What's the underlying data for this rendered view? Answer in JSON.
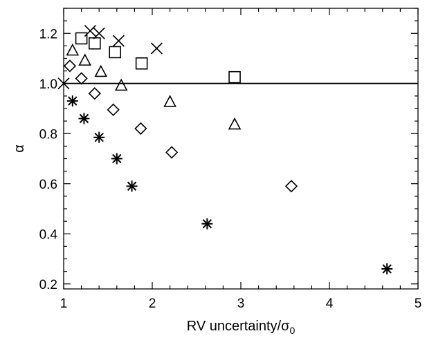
{
  "chart_data": {
    "type": "scatter",
    "xlim": [
      1,
      5
    ],
    "ylim": [
      0.18,
      1.3
    ],
    "xlabel_main": "RV uncertainty/σ",
    "xlabel_sub": "0",
    "ylabel": "α",
    "x_ticks": [
      "1",
      "2",
      "3",
      "4",
      "5"
    ],
    "x_tick_values": [
      1,
      2,
      3,
      4,
      5
    ],
    "y_ticks": [
      "0.2",
      "0.4",
      "0.6",
      "0.8",
      "1.0",
      "1.2"
    ],
    "y_tick_values": [
      0.2,
      0.4,
      0.6,
      0.8,
      1.0,
      1.2
    ],
    "reference_line": {
      "y": 1.0
    },
    "series": [
      {
        "marker": "x",
        "points": [
          [
            1.0,
            1.0
          ],
          [
            1.3,
            1.21
          ],
          [
            1.4,
            1.2
          ],
          [
            1.62,
            1.17
          ],
          [
            2.05,
            1.14
          ]
        ]
      },
      {
        "marker": "square",
        "points": [
          [
            1.2,
            1.18
          ],
          [
            1.35,
            1.16
          ],
          [
            1.58,
            1.125
          ],
          [
            1.88,
            1.08
          ],
          [
            2.93,
            1.025
          ]
        ]
      },
      {
        "marker": "triangle",
        "points": [
          [
            1.1,
            1.13
          ],
          [
            1.24,
            1.09
          ],
          [
            1.42,
            1.045
          ],
          [
            1.65,
            0.99
          ],
          [
            2.2,
            0.925
          ],
          [
            2.93,
            0.835
          ]
        ]
      },
      {
        "marker": "diamond",
        "points": [
          [
            1.07,
            1.07
          ],
          [
            1.2,
            1.02
          ],
          [
            1.35,
            0.96
          ],
          [
            1.56,
            0.895
          ],
          [
            1.87,
            0.82
          ],
          [
            2.22,
            0.725
          ],
          [
            3.57,
            0.59
          ]
        ]
      },
      {
        "marker": "asterisk",
        "points": [
          [
            1.1,
            0.93
          ],
          [
            1.23,
            0.86
          ],
          [
            1.4,
            0.785
          ],
          [
            1.6,
            0.7
          ],
          [
            1.77,
            0.59
          ],
          [
            2.62,
            0.44
          ],
          [
            4.65,
            0.26
          ]
        ]
      }
    ]
  }
}
